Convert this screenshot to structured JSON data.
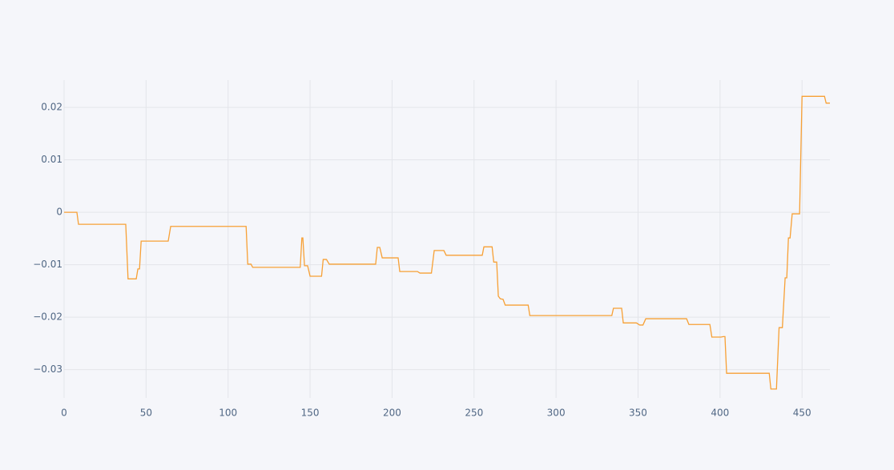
{
  "chart_data": {
    "type": "line",
    "x": [
      0,
      7.8,
      8.8,
      37.6,
      39,
      44,
      45,
      46,
      47,
      63.5,
      65,
      111,
      112,
      114,
      115,
      144,
      145,
      145.6,
      146.6,
      148.5,
      150,
      157,
      158,
      160,
      161.7,
      190,
      191,
      192.5,
      194,
      203.7,
      204.7,
      215.5,
      217,
      224,
      225.7,
      231.6,
      233,
      255,
      256,
      261,
      262,
      263.8,
      264.8,
      266,
      267.7,
      269,
      283,
      284,
      334,
      335,
      340,
      341,
      349,
      351,
      353,
      354.7,
      379.6,
      381,
      393.8,
      395,
      400.6,
      402,
      403,
      404,
      430,
      431,
      434.4,
      436,
      438,
      439.7,
      440.7,
      441.7,
      442.7,
      444,
      448.5,
      450,
      463.7,
      464.7,
      467
    ],
    "values": [
      0,
      0,
      -0.0023,
      -0.0023,
      -0.0127,
      -0.0127,
      -0.0108,
      -0.0108,
      -0.0055,
      -0.0055,
      -0.0027,
      -0.0027,
      -0.0099,
      -0.0099,
      -0.0105,
      -0.0105,
      -0.0049,
      -0.0049,
      -0.0102,
      -0.0102,
      -0.0122,
      -0.0122,
      -0.009,
      -0.009,
      -0.0099,
      -0.0099,
      -0.0067,
      -0.0067,
      -0.0087,
      -0.0087,
      -0.0113,
      -0.0113,
      -0.0116,
      -0.0116,
      -0.0073,
      -0.0073,
      -0.0082,
      -0.0082,
      -0.0066,
      -0.0066,
      -0.0095,
      -0.0095,
      -0.016,
      -0.0165,
      -0.0166,
      -0.0177,
      -0.0177,
      -0.0197,
      -0.0197,
      -0.0183,
      -0.0183,
      -0.0211,
      -0.0211,
      -0.0215,
      -0.0215,
      -0.0203,
      -0.0203,
      -0.0214,
      -0.0214,
      -0.0238,
      -0.0238,
      -0.0237,
      -0.0237,
      -0.0307,
      -0.0307,
      -0.0337,
      -0.0337,
      -0.022,
      -0.022,
      -0.0125,
      -0.0125,
      -0.0049,
      -0.0049,
      -0.0003,
      -0.0003,
      0.0221,
      0.0221,
      0.0208,
      0.0208
    ],
    "color": "#f7a035",
    "xlim": [
      0,
      467
    ],
    "xticks": [
      0,
      50,
      100,
      150,
      200,
      250,
      300,
      350,
      400,
      450
    ],
    "ylim": [
      -0.0354,
      0.0252
    ],
    "yticks": [
      {
        "value": -0.03,
        "label": "−0.03"
      },
      {
        "value": -0.02,
        "label": "−0.02"
      },
      {
        "value": -0.01,
        "label": "−0.01"
      },
      0,
      0.01,
      0.02
    ],
    "grid": true
  }
}
